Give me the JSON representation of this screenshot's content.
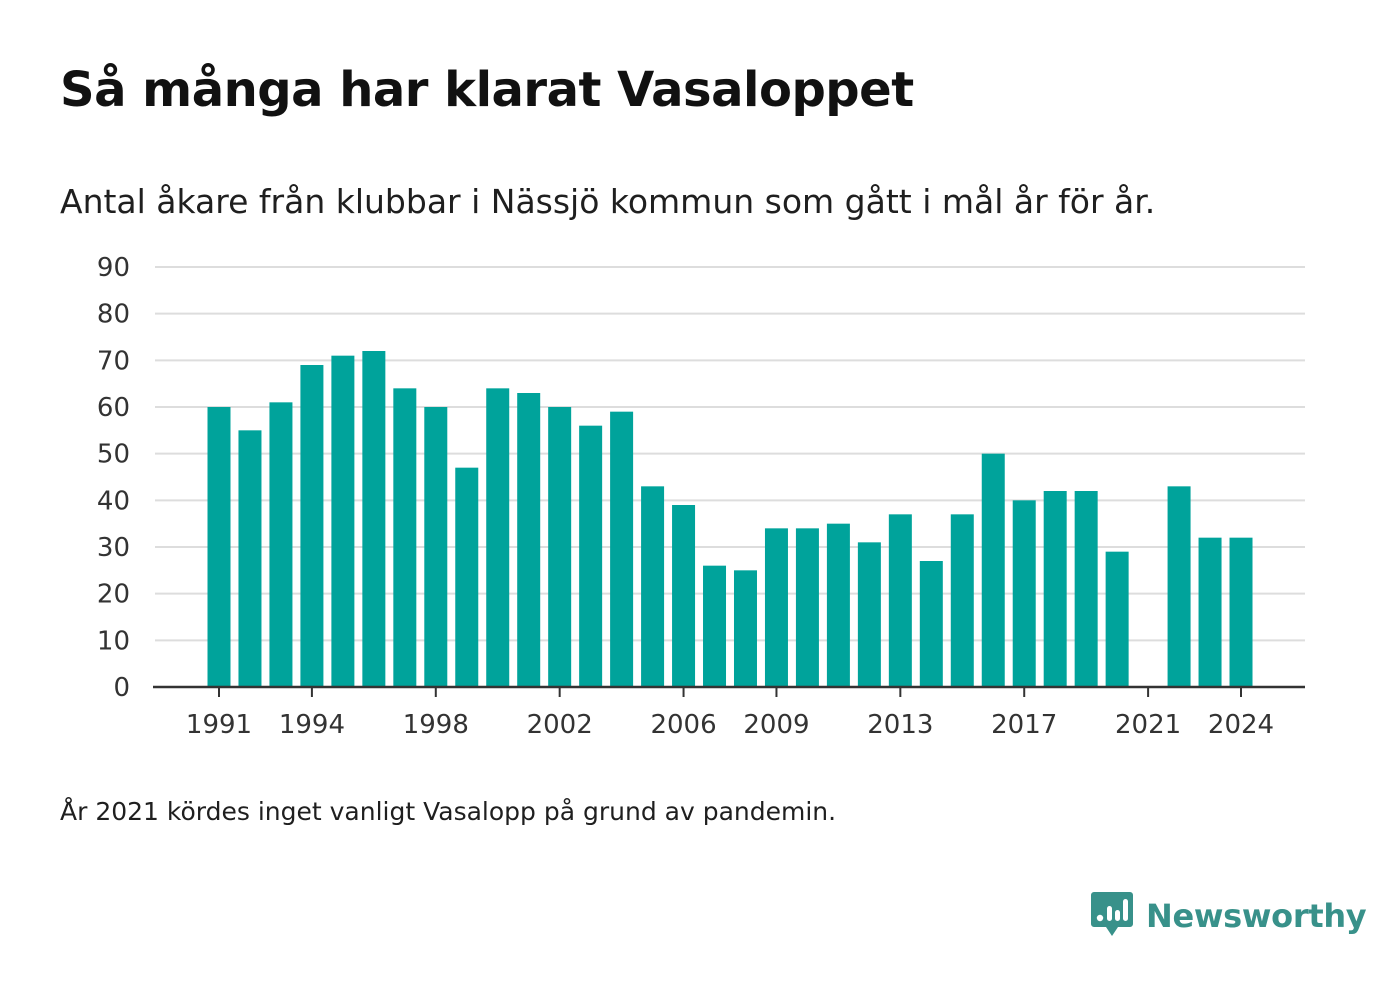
{
  "header": {
    "title": "Så många har klarat Vasaloppet",
    "subtitle": "Antal åkare från klubbar i Nässjö kommun som gått i mål år för år."
  },
  "footer": {
    "note": "År 2021 kördes inget vanligt Vasalopp på grund av pandemin.",
    "brand": "Newsworthy",
    "brand_color": "#38918a"
  },
  "chart_data": {
    "type": "bar",
    "x": [
      1991,
      1992,
      1993,
      1994,
      1995,
      1996,
      1997,
      1998,
      1999,
      2000,
      2001,
      2002,
      2003,
      2004,
      2005,
      2006,
      2007,
      2008,
      2009,
      2010,
      2011,
      2012,
      2013,
      2014,
      2015,
      2016,
      2017,
      2018,
      2019,
      2020,
      2021,
      2022,
      2023,
      2024
    ],
    "values": [
      60,
      55,
      61,
      69,
      71,
      72,
      64,
      60,
      47,
      64,
      63,
      60,
      56,
      59,
      43,
      39,
      26,
      25,
      34,
      34,
      35,
      31,
      37,
      27,
      37,
      50,
      40,
      42,
      42,
      29,
      null,
      43,
      32,
      32
    ],
    "x_ticks": [
      1991,
      1994,
      1998,
      2002,
      2006,
      2009,
      2013,
      2017,
      2021,
      2024
    ],
    "y_ticks": [
      0,
      10,
      20,
      30,
      40,
      50,
      60,
      70,
      80,
      90
    ],
    "ylim": [
      0,
      90
    ],
    "bar_color": "#00a39b",
    "grid": true
  }
}
